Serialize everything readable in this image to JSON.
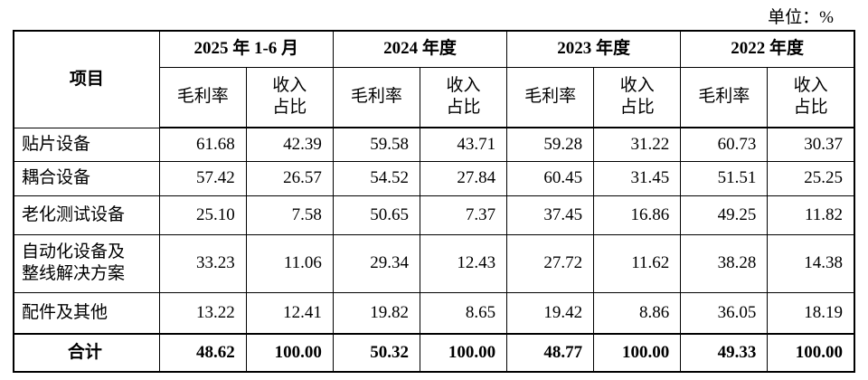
{
  "unit": "单位：%",
  "header": {
    "item": "项目",
    "periods": [
      {
        "label": "2025 年 1-6 月",
        "columns": [
          "毛利率",
          "收入\n占比"
        ]
      },
      {
        "label": "2024 年度",
        "columns": [
          "毛利率",
          "收入\n占比"
        ]
      },
      {
        "label": "2023 年度",
        "columns": [
          "毛利率",
          "收入\n占比"
        ]
      },
      {
        "label": "2022 年度",
        "columns": [
          "毛利率",
          "收入\n占比"
        ]
      }
    ]
  },
  "rows": [
    {
      "name": "贴片设备",
      "values": [
        "61.68",
        "42.39",
        "59.58",
        "43.71",
        "59.28",
        "31.22",
        "60.73",
        "30.37"
      ]
    },
    {
      "name": "耦合设备",
      "values": [
        "57.42",
        "26.57",
        "54.52",
        "27.84",
        "60.45",
        "31.45",
        "51.51",
        "25.25"
      ]
    },
    {
      "name": "老化测试设备",
      "values": [
        "25.10",
        "7.58",
        "50.65",
        "7.37",
        "37.45",
        "16.86",
        "49.25",
        "11.82"
      ]
    },
    {
      "name": "自动化设备及\n整线解决方案",
      "values": [
        "33.23",
        "11.06",
        "29.34",
        "12.43",
        "27.72",
        "11.62",
        "38.28",
        "14.38"
      ]
    },
    {
      "name": "配件及其他",
      "values": [
        "13.22",
        "12.41",
        "19.82",
        "8.65",
        "19.42",
        "8.86",
        "36.05",
        "18.19"
      ]
    }
  ],
  "total": {
    "name": "合计",
    "values": [
      "48.62",
      "100.00",
      "50.32",
      "100.00",
      "48.77",
      "100.00",
      "49.33",
      "100.00"
    ]
  }
}
